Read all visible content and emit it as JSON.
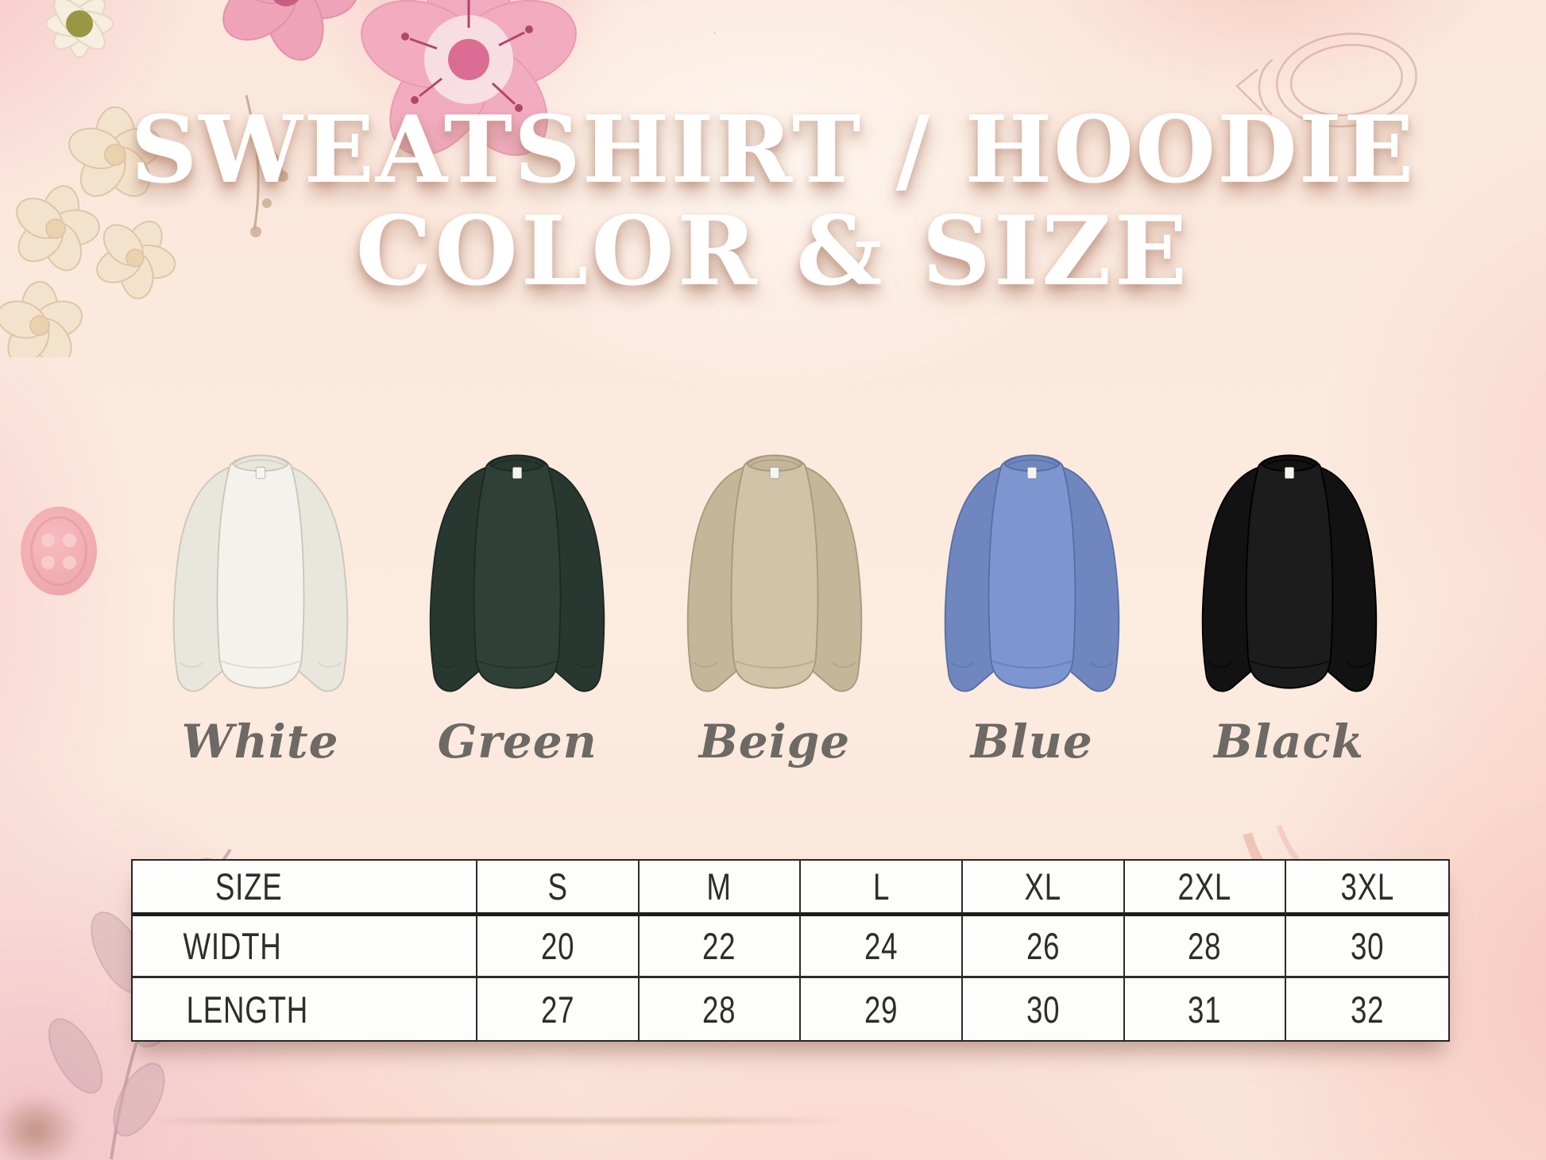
{
  "title": {
    "line1": "SWEATSHIRT / HOODIE",
    "line2": "COLOR & SIZE"
  },
  "products": {
    "items": [
      {
        "name": "White",
        "base": "#f4f2ec",
        "shade": "#e9e6dd",
        "line": "#cbc8bb"
      },
      {
        "name": "Green",
        "base": "#2f4038",
        "shade": "#283830",
        "line": "#1c2922"
      },
      {
        "name": "Beige",
        "base": "#d2c3a8",
        "shade": "#c6b699",
        "line": "#ab997c"
      },
      {
        "name": "Blue",
        "base": "#7e96cf",
        "shade": "#6f86bf",
        "line": "#5870a8"
      },
      {
        "name": "Black",
        "base": "#1c1c1c",
        "shade": "#121212",
        "line": "#000000"
      }
    ]
  },
  "size_table": {
    "columns": [
      "SIZE",
      "S",
      "M",
      "L",
      "XL",
      "2XL",
      "3XL"
    ],
    "rows": [
      {
        "label": "WIDTH",
        "values": [
          "20",
          "22",
          "24",
          "26",
          "28",
          "30"
        ]
      },
      {
        "label": "LENGTH",
        "values": [
          "27",
          "28",
          "29",
          "30",
          "31",
          "32"
        ]
      }
    ]
  },
  "chart_data": {
    "type": "table",
    "title": "SWEATSHIRT / HOODIE COLOR & SIZE",
    "columns": [
      "SIZE",
      "S",
      "M",
      "L",
      "XL",
      "2XL",
      "3XL"
    ],
    "rows": [
      [
        "WIDTH",
        20,
        22,
        24,
        26,
        28,
        30
      ],
      [
        "LENGTH",
        27,
        28,
        29,
        30,
        31,
        32
      ]
    ],
    "colors_offered": [
      "White",
      "Green",
      "Beige",
      "Blue",
      "Black"
    ]
  },
  "palette": {
    "background": "#fcebdf",
    "pink_wash": "#f6c9c3",
    "title_text": "#ffffff",
    "title_shadow": "rgba(168,120,99,0.6)",
    "label_text": "#6d6965",
    "table_text": "#2d2d2d",
    "table_bg": "#fdfdfb",
    "table_border": "#262626"
  },
  "decorations": [
    "flower-icon",
    "daisy-icon",
    "blossom-icon",
    "button-icon",
    "leaf-branch-icon",
    "ring-sketch-icon",
    "watercolor-wash"
  ]
}
